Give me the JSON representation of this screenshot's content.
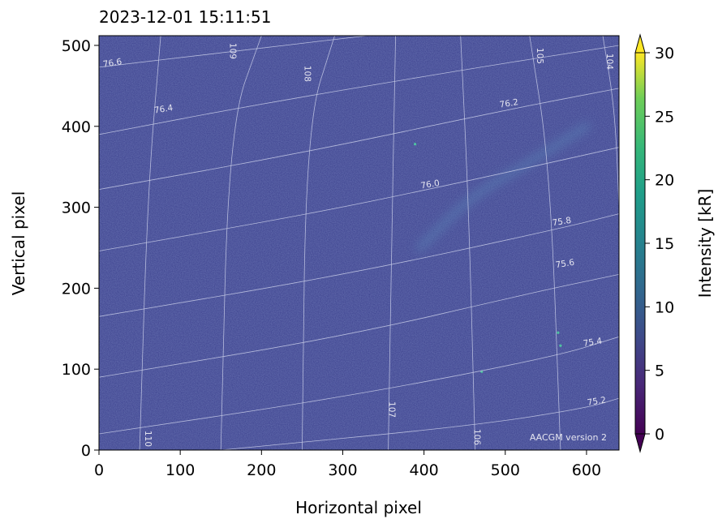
{
  "chart_data": {
    "type": "heatmap",
    "title": "2023-12-01 15:11:51",
    "xlabel": "Horizontal pixel",
    "ylabel": "Vertical pixel",
    "xlim": [
      0,
      640
    ],
    "ylim": [
      0,
      512
    ],
    "x_ticks": [
      0,
      100,
      200,
      300,
      400,
      500,
      600
    ],
    "y_ticks": [
      0,
      100,
      200,
      300,
      400,
      500
    ],
    "colorbar": {
      "label": "Intensity [kR]",
      "range": [
        0,
        30
      ],
      "ticks": [
        0,
        5,
        10,
        15,
        20,
        25,
        30
      ],
      "extend": "both",
      "colormap": "viridis"
    },
    "background_color": "#3a3f8c",
    "annotation": "AACGM version 2",
    "latitude_contours": [
      {
        "label": "76.6",
        "points": [
          [
            0,
            473
          ],
          [
            160,
            492
          ],
          [
            330,
            512
          ]
        ],
        "label_at": [
          17,
          475
        ]
      },
      {
        "label": "76.4",
        "points": [
          [
            0,
            390
          ],
          [
            200,
            428
          ],
          [
            480,
            475
          ],
          [
            640,
            500
          ]
        ],
        "label_at": [
          80,
          418
        ]
      },
      {
        "label": "76.2",
        "points": [
          [
            0,
            322
          ],
          [
            250,
            367
          ],
          [
            500,
            420
          ],
          [
            640,
            447
          ]
        ],
        "label_at": [
          505,
          425
        ]
      },
      {
        "label": "76.0",
        "points": [
          [
            0,
            246
          ],
          [
            250,
            290
          ],
          [
            420,
            325
          ],
          [
            640,
            374
          ]
        ],
        "label_at": [
          408,
          325
        ]
      },
      {
        "label": "75.8",
        "points": [
          [
            0,
            165
          ],
          [
            300,
            216
          ],
          [
            560,
            272
          ],
          [
            640,
            292
          ]
        ],
        "label_at": [
          570,
          279
        ]
      },
      {
        "label": "75.6",
        "points": [
          [
            0,
            90
          ],
          [
            300,
            140
          ],
          [
            540,
            196
          ],
          [
            640,
            217
          ]
        ],
        "label_at": [
          574,
          227
        ]
      },
      {
        "label": "75.4",
        "points": [
          [
            0,
            20
          ],
          [
            300,
            65
          ],
          [
            560,
            115
          ],
          [
            640,
            140
          ]
        ],
        "label_at": [
          608,
          130
        ]
      },
      {
        "label": "75.2",
        "points": [
          [
            150,
            0
          ],
          [
            460,
            30
          ],
          [
            600,
            52
          ],
          [
            640,
            64
          ]
        ],
        "label_at": [
          613,
          57
        ]
      }
    ],
    "longitude_contours": [
      {
        "label": "110",
        "points": [
          [
            76,
            512
          ],
          [
            60,
            320
          ],
          [
            50,
            0
          ]
        ],
        "label_at": [
          57,
          14
        ]
      },
      {
        "label": "109",
        "points": [
          [
            200,
            512
          ],
          [
            160,
            400
          ],
          [
            150,
            0
          ]
        ],
        "label_at": [
          161,
          493
        ]
      },
      {
        "label": "108",
        "points": [
          [
            290,
            512
          ],
          [
            255,
            400
          ],
          [
            250,
            0
          ]
        ],
        "label_at": [
          253,
          465
        ]
      },
      {
        "label": "107",
        "points": [
          [
            365,
            512
          ],
          [
            360,
            250
          ],
          [
            356,
            0
          ]
        ],
        "label_at": [
          357,
          50
        ]
      },
      {
        "label": "106",
        "points": [
          [
            445,
            512
          ],
          [
            455,
            300
          ],
          [
            463,
            0
          ]
        ],
        "label_at": [
          462,
          16
        ]
      },
      {
        "label": "105",
        "points": [
          [
            530,
            512
          ],
          [
            555,
            350
          ],
          [
            568,
            0
          ]
        ],
        "label_at": [
          539,
          487
        ]
      },
      {
        "label": "104",
        "points": [
          [
            620,
            512
          ],
          [
            635,
            420
          ],
          [
            640,
            300
          ]
        ],
        "label_at": [
          625,
          480
        ]
      }
    ],
    "features": [
      {
        "kind": "faint-arc",
        "points": [
          [
            395,
            250
          ],
          [
            460,
            315
          ],
          [
            530,
            355
          ],
          [
            600,
            400
          ]
        ]
      },
      {
        "kind": "bright-speck",
        "at": [
          389,
          378
        ]
      },
      {
        "kind": "bright-speck",
        "at": [
          568,
          129
        ]
      },
      {
        "kind": "bright-speck",
        "at": [
          471,
          97
        ]
      },
      {
        "kind": "bright-speck",
        "at": [
          565,
          145
        ]
      }
    ]
  }
}
